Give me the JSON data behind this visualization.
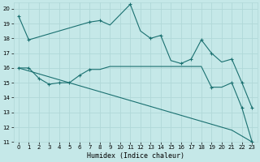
{
  "xlabel": "Humidex (Indice chaleur)",
  "bg_color": "#c5e8e8",
  "grid_color": "#b0d8d8",
  "line_color": "#1a7070",
  "xlim": [
    -0.5,
    23.5
  ],
  "ylim": [
    11,
    20.4
  ],
  "yticks": [
    11,
    12,
    13,
    14,
    15,
    16,
    17,
    18,
    19,
    20
  ],
  "xticks": [
    0,
    1,
    2,
    3,
    4,
    5,
    6,
    7,
    8,
    9,
    10,
    11,
    12,
    13,
    14,
    15,
    16,
    17,
    18,
    19,
    20,
    21,
    22,
    23
  ],
  "line1_x": [
    0,
    1,
    2,
    3,
    4,
    5,
    6,
    7,
    8,
    9,
    10,
    11,
    12,
    13,
    14,
    15,
    16,
    17,
    18,
    19,
    20,
    21,
    22,
    23
  ],
  "line1_y": [
    19.5,
    17.9,
    18.1,
    18.3,
    18.5,
    18.7,
    18.9,
    19.1,
    19.2,
    18.9,
    19.6,
    20.3,
    18.5,
    18.0,
    18.2,
    16.5,
    16.3,
    16.6,
    17.9,
    17.0,
    16.4,
    16.6,
    15.0,
    13.3
  ],
  "line1_markers_x": [
    0,
    1,
    7,
    8,
    11,
    13,
    14,
    16,
    17,
    18,
    19,
    21,
    22,
    23
  ],
  "line2_x": [
    0,
    1,
    2,
    3,
    4,
    5,
    6,
    7,
    8,
    9,
    10,
    11,
    12,
    13,
    14,
    15,
    16,
    17,
    18,
    19,
    20,
    21,
    22,
    23
  ],
  "line2_y": [
    16.0,
    16.0,
    15.3,
    14.9,
    15.0,
    15.0,
    15.5,
    15.9,
    15.9,
    16.1,
    16.1,
    16.1,
    16.1,
    16.1,
    16.1,
    16.1,
    16.1,
    16.1,
    16.1,
    14.7,
    14.7,
    15.0,
    13.3,
    11.0
  ],
  "line2_markers_x": [
    0,
    1,
    2,
    3,
    4,
    5,
    6,
    7,
    19,
    21,
    22,
    23
  ],
  "line3_x": [
    0,
    1,
    2,
    3,
    4,
    5,
    6,
    7,
    8,
    9,
    10,
    11,
    12,
    13,
    14,
    15,
    16,
    17,
    18,
    19,
    20,
    21,
    22,
    23
  ],
  "line3_y": [
    16.0,
    15.8,
    15.6,
    15.4,
    15.2,
    15.0,
    14.8,
    14.6,
    14.4,
    14.2,
    14.0,
    13.8,
    13.6,
    13.4,
    13.2,
    13.0,
    12.8,
    12.6,
    12.4,
    12.2,
    12.0,
    11.8,
    11.4,
    11.0
  ]
}
